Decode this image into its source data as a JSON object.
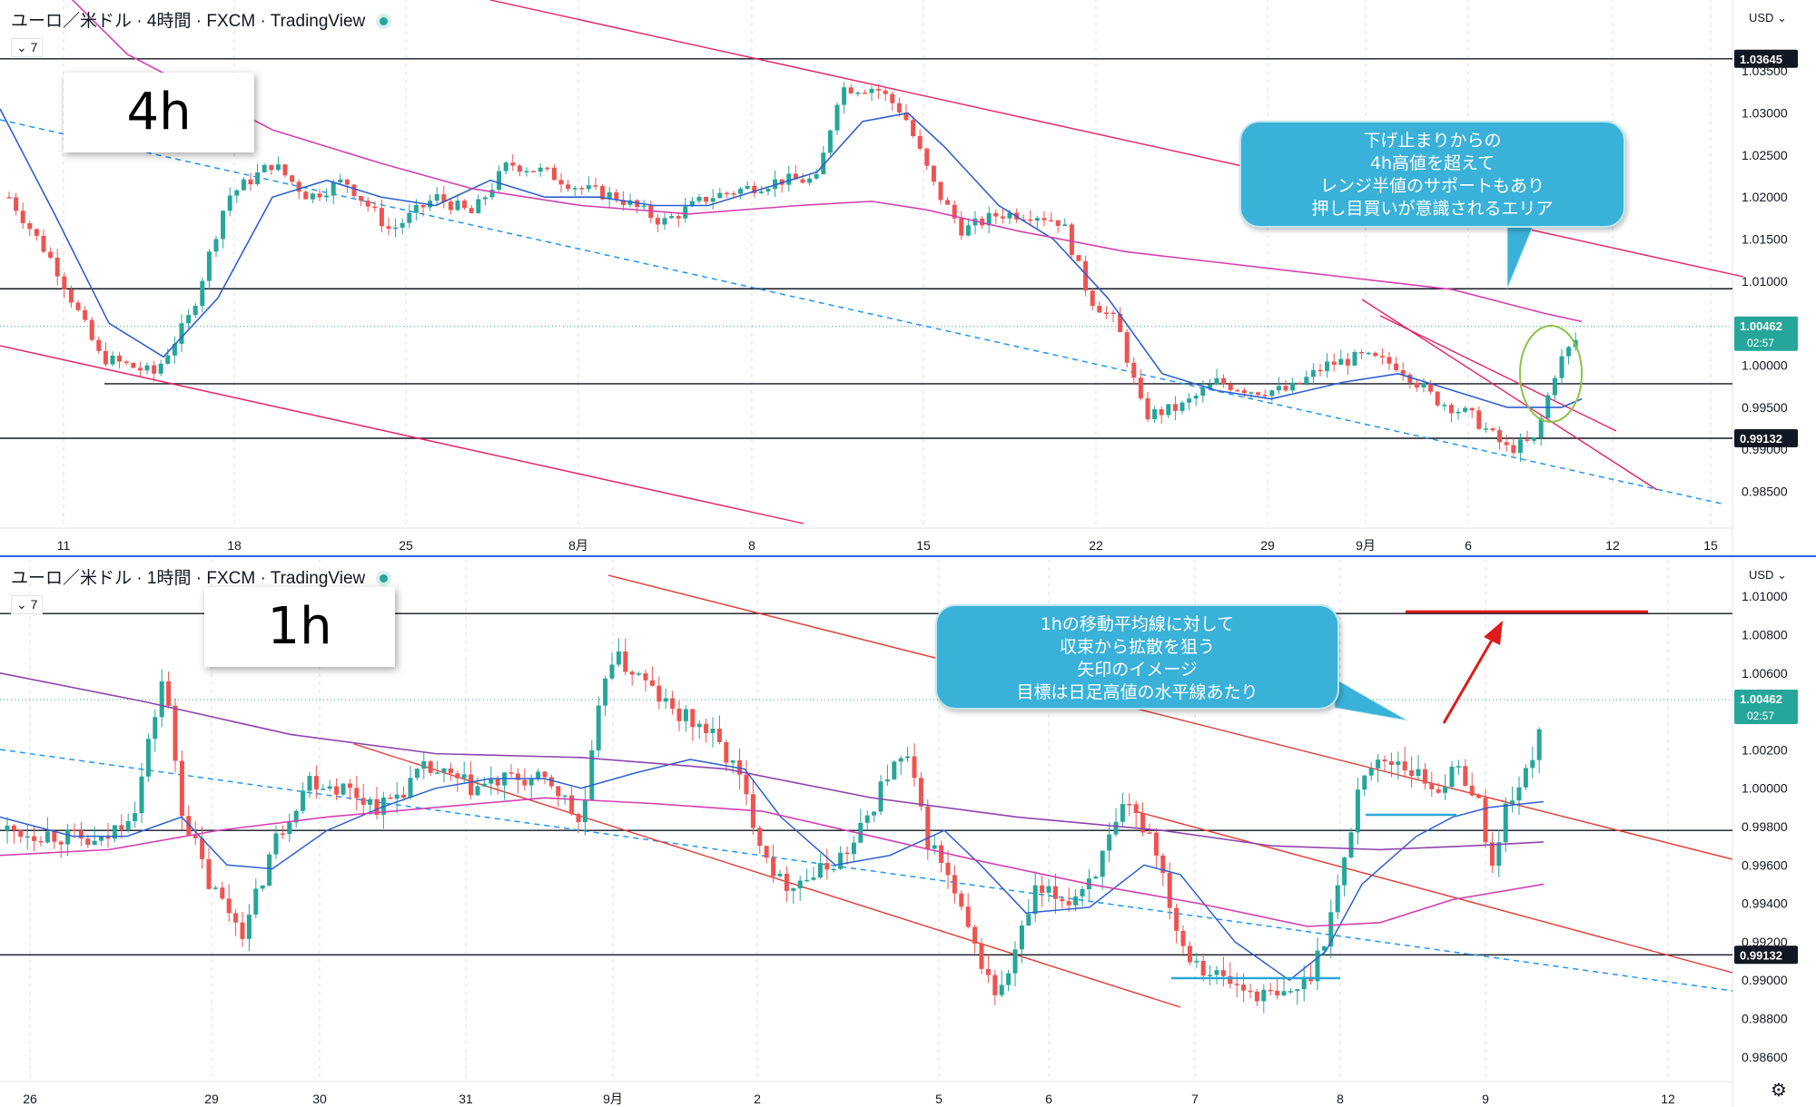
{
  "chart_data": [
    {
      "type": "candlestick",
      "title": "ユーロ／米ドル · 4時間 · FXCM · TradingView",
      "timeframe_label": "4h",
      "indicator_tag": "7",
      "currency": "USD",
      "x_ticks": [
        "11",
        "18",
        "25",
        "8月",
        "8",
        "15",
        "22",
        "29",
        "9月",
        "6",
        "12",
        "15"
      ],
      "y_ticks": [
        "1.03500",
        "1.03000",
        "1.02500",
        "1.02000",
        "1.01500",
        "1.01000",
        "1.00000",
        "0.99500",
        "0.99000",
        "0.98500"
      ],
      "ylim": [
        0.9815,
        1.0415
      ],
      "price_labels": [
        {
          "value": 1.03645,
          "text": "1.03645"
        },
        {
          "value": 0.99132,
          "text": "0.99132"
        }
      ],
      "current_price": {
        "value": 1.00462,
        "text": "1.00462",
        "countdown": "02:57"
      },
      "horizontal_levels": [
        1.03645,
        1.0091,
        0.9978,
        0.99132
      ],
      "annotation": [
        "下げ止まりからの",
        "4h高値を超えて",
        "レンジ半値のサポートもあり",
        "押し目買いが意識されるエリア"
      ],
      "colors": {
        "up": "#26a69a",
        "down": "#ef5350",
        "ma_fast": "#2f5fd1",
        "ma_slow": "#d63fae",
        "channel": "#e91e63",
        "trend": "#2196f3"
      }
    },
    {
      "type": "candlestick",
      "title": "ユーロ／米ドル · 1時間 · FXCM · TradingView",
      "timeframe_label": "1h",
      "indicator_tag": "7",
      "currency": "USD",
      "x_ticks": [
        "26",
        "29",
        "30",
        "31",
        "9月",
        "2",
        "5",
        "6",
        "7",
        "8",
        "9",
        "12"
      ],
      "y_ticks": [
        "1.01000",
        "1.00800",
        "1.00600",
        "1.00200",
        "1.00000",
        "0.99800",
        "0.99600",
        "0.99400",
        "0.99200",
        "0.99000",
        "0.98800",
        "0.98600"
      ],
      "ylim": [
        0.985,
        1.011
      ],
      "price_labels": [
        {
          "value": 0.99132,
          "text": "0.99132"
        }
      ],
      "current_price": {
        "value": 1.00462,
        "text": "1.00462",
        "countdown": "02:57"
      },
      "horizontal_levels": [
        1.0091,
        0.9978,
        0.99132
      ],
      "annotation": [
        "1hの移動平均線に対して",
        "収束から拡散を狙う",
        "矢印のイメージ",
        "目標は日足高値の水平線あたり"
      ],
      "colors": {
        "up": "#26a69a",
        "down": "#ef5350",
        "ma_fast": "#2f5fd1",
        "ma_mid": "#d63fae",
        "ma_slow": "#8e44ad",
        "channel": "#e53935",
        "trend": "#2196f3",
        "target": "#e01b1b"
      }
    }
  ]
}
